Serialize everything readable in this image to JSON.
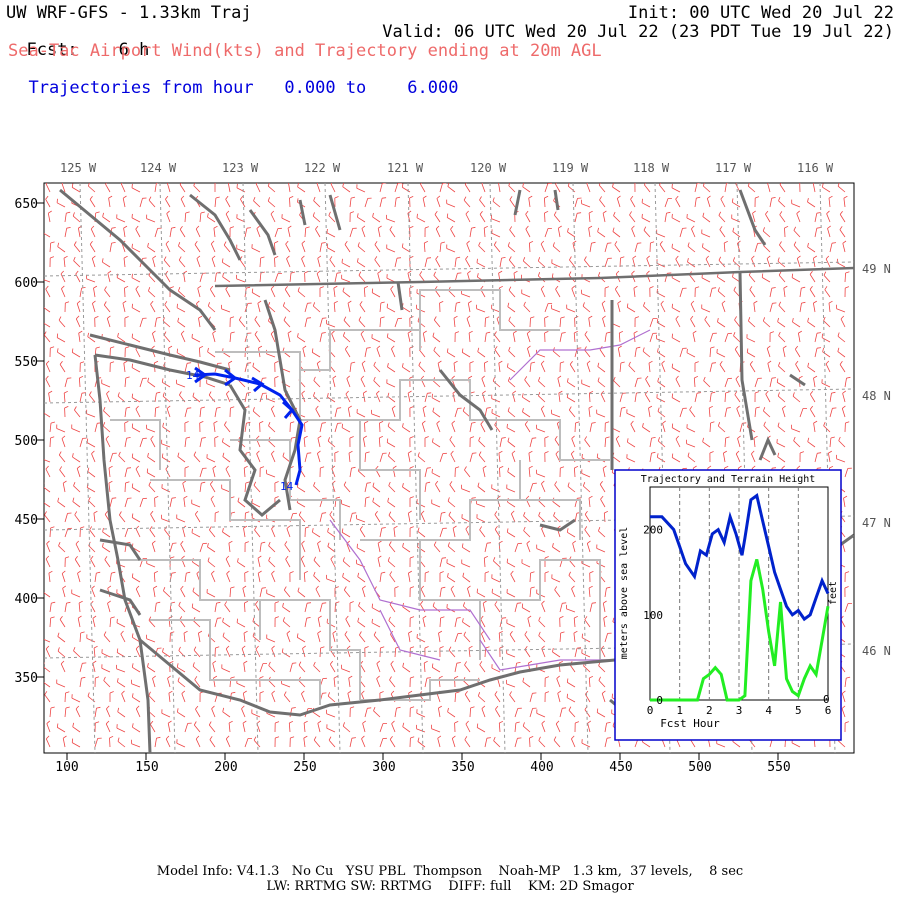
{
  "header": {
    "title": "UW WRF-GFS - 1.33km Traj",
    "init": "Init: 00 UTC Wed 20 Jul 22",
    "fcst_label": "Fcst:",
    "fcst_value": "6 h",
    "valid": "Valid: 06 UTC Wed 20 Jul 22 (23 PDT Tue 19 Jul 22)",
    "subtitle_red": "Sea-Tac Airport Wind(kts) and Trajectory ending at 20m AGL",
    "subtitle_blue_label": "Trajectories from hour",
    "hour_from": "0.000",
    "hour_to_word": "to",
    "hour_to": "6.000"
  },
  "map": {
    "lon_labels": [
      "125 W",
      "124 W",
      "123 W",
      "122 W",
      "121 W",
      "120 W",
      "119 W",
      "118 W",
      "117 W",
      "116 W"
    ],
    "lat_labels": [
      "49 N",
      "48 N",
      "47 N",
      "46 N"
    ],
    "x_ticks": [
      "100",
      "150",
      "200",
      "250",
      "300",
      "350",
      "400",
      "450",
      "500",
      "550"
    ],
    "y_ticks": [
      "650",
      "600",
      "550",
      "500",
      "450",
      "400",
      "350"
    ],
    "traj_start_label": "14",
    "traj_end_label": "14",
    "colors": {
      "coast": "#6f6f6f",
      "county": "#bdbdbd",
      "wind": "#ee4444",
      "grid": "#888888",
      "trajectory": "#0022ee",
      "terrain_line": "#22ee22",
      "river": "#a070c0"
    }
  },
  "inset": {
    "title": "Trajectory and Terrain Height",
    "ylabel_left": "meters above sea level",
    "ylabel_right": "feet",
    "xlabel": "Fcst Hour",
    "x_ticks": [
      "0",
      "1",
      "2",
      "3",
      "4",
      "5",
      "6"
    ],
    "y_ticks_left": [
      "0",
      "100",
      "200"
    ],
    "y_tick_right": "0"
  },
  "chart_data": {
    "type": "line",
    "title": "Trajectory and Terrain Height",
    "xlabel": "Fcst Hour",
    "ylabel": "meters above sea level",
    "xlim": [
      0,
      6
    ],
    "ylim": [
      0,
      250
    ],
    "series": [
      {
        "name": "trajectory",
        "x": [
          0,
          0.4,
          0.8,
          1.0,
          1.2,
          1.5,
          1.7,
          1.9,
          2.1,
          2.3,
          2.5,
          2.7,
          2.9,
          3.1,
          3.2,
          3.4,
          3.6,
          3.8,
          4.0,
          4.2,
          4.4,
          4.6,
          4.8,
          5.0,
          5.2,
          5.4,
          5.6,
          5.8,
          6.0
        ],
        "values": [
          215,
          215,
          200,
          180,
          160,
          145,
          175,
          170,
          195,
          200,
          185,
          215,
          195,
          170,
          190,
          235,
          240,
          210,
          180,
          150,
          130,
          110,
          100,
          105,
          95,
          100,
          120,
          140,
          125
        ]
      },
      {
        "name": "terrain",
        "x": [
          0,
          1.6,
          1.8,
          2.0,
          2.2,
          2.4,
          2.6,
          2.8,
          3.0,
          3.2,
          3.4,
          3.6,
          3.8,
          4.0,
          4.2,
          4.4,
          4.6,
          4.8,
          5.0,
          5.2,
          5.4,
          5.6,
          5.8,
          6.0
        ],
        "values": [
          0,
          0,
          25,
          30,
          38,
          30,
          0,
          0,
          0,
          5,
          140,
          165,
          130,
          80,
          40,
          115,
          25,
          10,
          5,
          25,
          40,
          30,
          70,
          110
        ]
      }
    ]
  },
  "footer": {
    "line1": "Model Info: V4.1.3   No Cu   YSU PBL  Thompson    Noah-MP   1.3 km,  37 levels,    8 sec",
    "line2": "LW: RRTMG SW: RRTMG    DIFF: full    KM: 2D Smagor"
  }
}
